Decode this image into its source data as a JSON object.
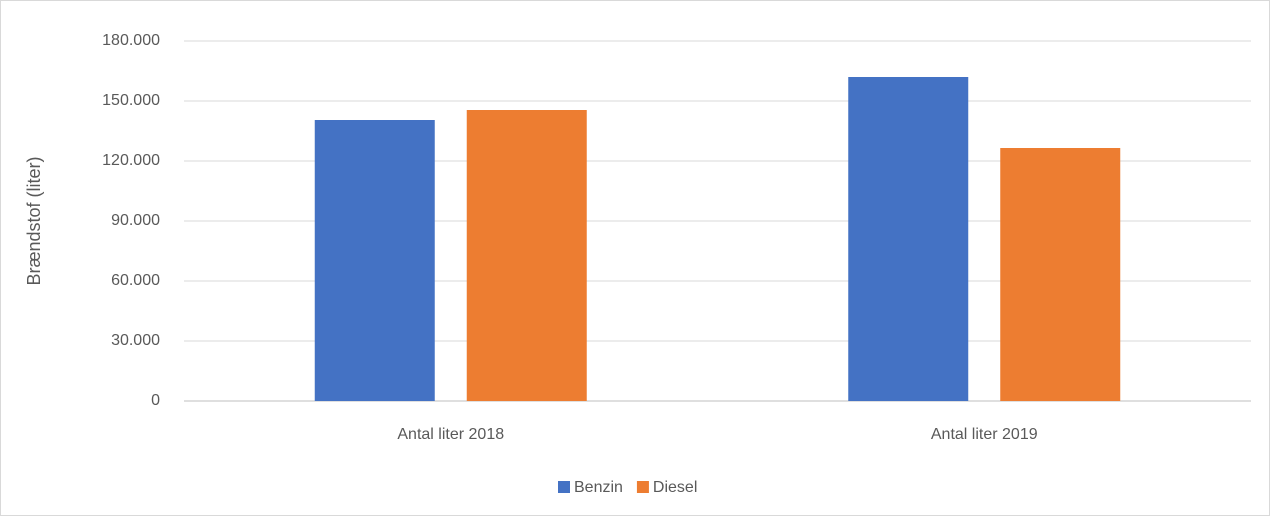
{
  "chart_data": {
    "type": "bar",
    "y_label": "Brændstof (liter)",
    "categories": [
      "Antal liter 2018",
      "Antal liter 2019"
    ],
    "series": [
      {
        "name": "Benzin",
        "color": "#4472c4",
        "values": [
          140500,
          162000
        ]
      },
      {
        "name": "Diesel",
        "color": "#ed7d31",
        "values": [
          145500,
          126500
        ]
      }
    ],
    "ylim": [
      0,
      180000
    ],
    "yticks": [
      0,
      {
        "value": 30000,
        "label": "30.000"
      },
      {
        "value": 60000,
        "label": "60.000"
      },
      {
        "value": 90000,
        "label": "90.000"
      },
      {
        "value": 120000,
        "label": "120.000"
      },
      {
        "value": 150000,
        "label": "150.000"
      },
      {
        "value": 180000,
        "label": "180.000"
      }
    ],
    "grid": true,
    "legend": "bottom"
  }
}
